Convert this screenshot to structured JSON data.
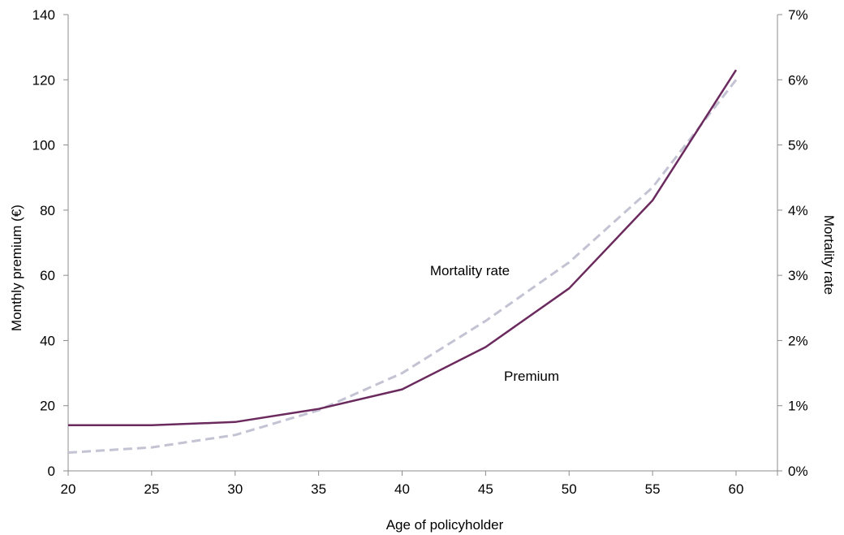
{
  "chart_data": {
    "type": "line",
    "x": [
      20,
      25,
      30,
      35,
      40,
      45,
      50,
      55,
      60
    ],
    "xlabel": "Age of policyholder",
    "x_ticks": [
      "20",
      "25",
      "30",
      "35",
      "40",
      "45",
      "50",
      "55",
      "60"
    ],
    "ylabel_left": "Monthly premium (€)",
    "ylabel_right": "Mortality rate",
    "ylim_left": [
      0,
      140
    ],
    "ylim_right": [
      0,
      0.07
    ],
    "y_ticks_left": [
      "0",
      "20",
      "40",
      "60",
      "80",
      "100",
      "120",
      "140"
    ],
    "y_ticks_right": [
      "0%",
      "1%",
      "2%",
      "3%",
      "4%",
      "5%",
      "6%",
      "7%"
    ],
    "grid": false,
    "series": [
      {
        "name": "Premium",
        "axis": "left",
        "values": [
          14,
          14,
          15,
          19,
          25,
          38,
          56,
          83,
          123
        ],
        "color": "#6b2a5e",
        "style": "solid"
      },
      {
        "name": "Mortality rate",
        "axis": "right",
        "values": [
          0.0028,
          0.0036,
          0.0055,
          0.0093,
          0.015,
          0.023,
          0.032,
          0.0435,
          0.06
        ],
        "color": "#c3c3d3",
        "style": "dashed"
      }
    ]
  }
}
